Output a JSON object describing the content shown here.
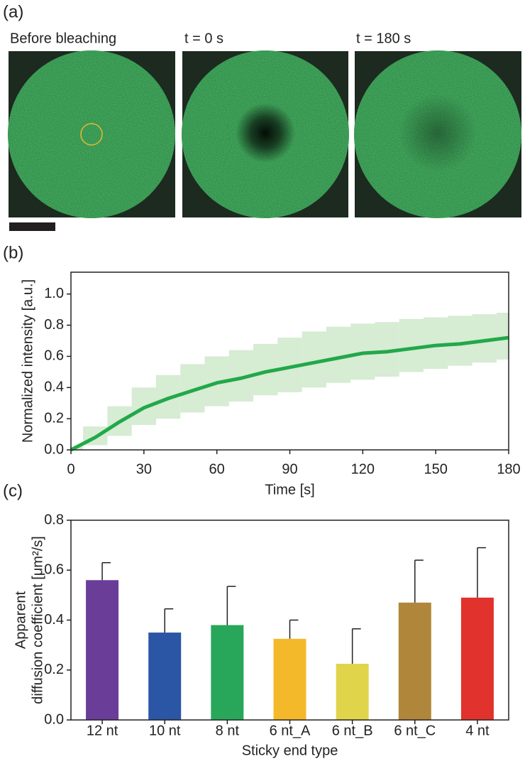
{
  "images": {
    "panel": "(a)",
    "captions": [
      "Before bleaching",
      "t = 0 s",
      "t = 180 s"
    ]
  },
  "chart_data": [
    {
      "type": "line",
      "panel": "(b)",
      "xlabel": "Time [s]",
      "ylabel": "Normalized intensity [a.u.]",
      "x": [
        0,
        10,
        20,
        30,
        40,
        50,
        60,
        70,
        80,
        90,
        100,
        110,
        120,
        130,
        140,
        150,
        160,
        170,
        180
      ],
      "series": [
        {
          "color": "#22a84a",
          "band_color": "#d6ecd3",
          "values": [
            0,
            0.08,
            0.18,
            0.27,
            0.33,
            0.38,
            0.43,
            0.46,
            0.5,
            0.53,
            0.56,
            0.59,
            0.62,
            0.63,
            0.65,
            0.67,
            0.68,
            0.7,
            0.72
          ],
          "upper": [
            0.02,
            0.15,
            0.28,
            0.4,
            0.48,
            0.55,
            0.6,
            0.64,
            0.68,
            0.72,
            0.76,
            0.79,
            0.81,
            0.82,
            0.84,
            0.85,
            0.86,
            0.87,
            0.88
          ],
          "lower": [
            0,
            0.03,
            0.09,
            0.16,
            0.2,
            0.24,
            0.28,
            0.31,
            0.35,
            0.37,
            0.4,
            0.43,
            0.45,
            0.47,
            0.5,
            0.52,
            0.54,
            0.56,
            0.58
          ]
        }
      ],
      "xlim": [
        0,
        180
      ],
      "xticks": [
        0,
        30,
        60,
        90,
        120,
        150,
        180
      ],
      "ylim": [
        0,
        1.14
      ],
      "yticks": [
        {
          "value": 0,
          "label": "0.0"
        },
        {
          "value": 0.2,
          "label": "0.2"
        },
        {
          "value": 0.4,
          "label": "0.4"
        },
        {
          "value": 0.6,
          "label": "0.6"
        },
        {
          "value": 0.8,
          "label": "0.8"
        },
        {
          "value": 1,
          "label": "1.0"
        }
      ]
    },
    {
      "type": "bar",
      "panel": "(c)",
      "xlabel": "Sticky end type",
      "ylabel": [
        "Apparent",
        "diffusion coefficient [μm²/s]"
      ],
      "categories": [
        "12 nt",
        "10 nt",
        "8 nt",
        "6 nt_A",
        "6 nt_B",
        "6 nt_C",
        "4 nt"
      ],
      "values": [
        0.56,
        0.35,
        0.38,
        0.325,
        0.225,
        0.47,
        0.49
      ],
      "errors": [
        0.07,
        0.095,
        0.155,
        0.075,
        0.14,
        0.17,
        0.2
      ],
      "colors": [
        "#6a3d98",
        "#2b56a6",
        "#28a75a",
        "#f3b92b",
        "#e0d44b",
        "#b0863a",
        "#e2322d"
      ],
      "ylim": [
        0,
        0.8
      ],
      "yticks": [
        {
          "value": 0,
          "label": "0.0"
        },
        {
          "value": 0.2,
          "label": "0.2"
        },
        {
          "value": 0.4,
          "label": "0.4"
        },
        {
          "value": 0.6,
          "label": "0.6"
        },
        {
          "value": 0.8,
          "label": "0.8"
        }
      ]
    }
  ]
}
